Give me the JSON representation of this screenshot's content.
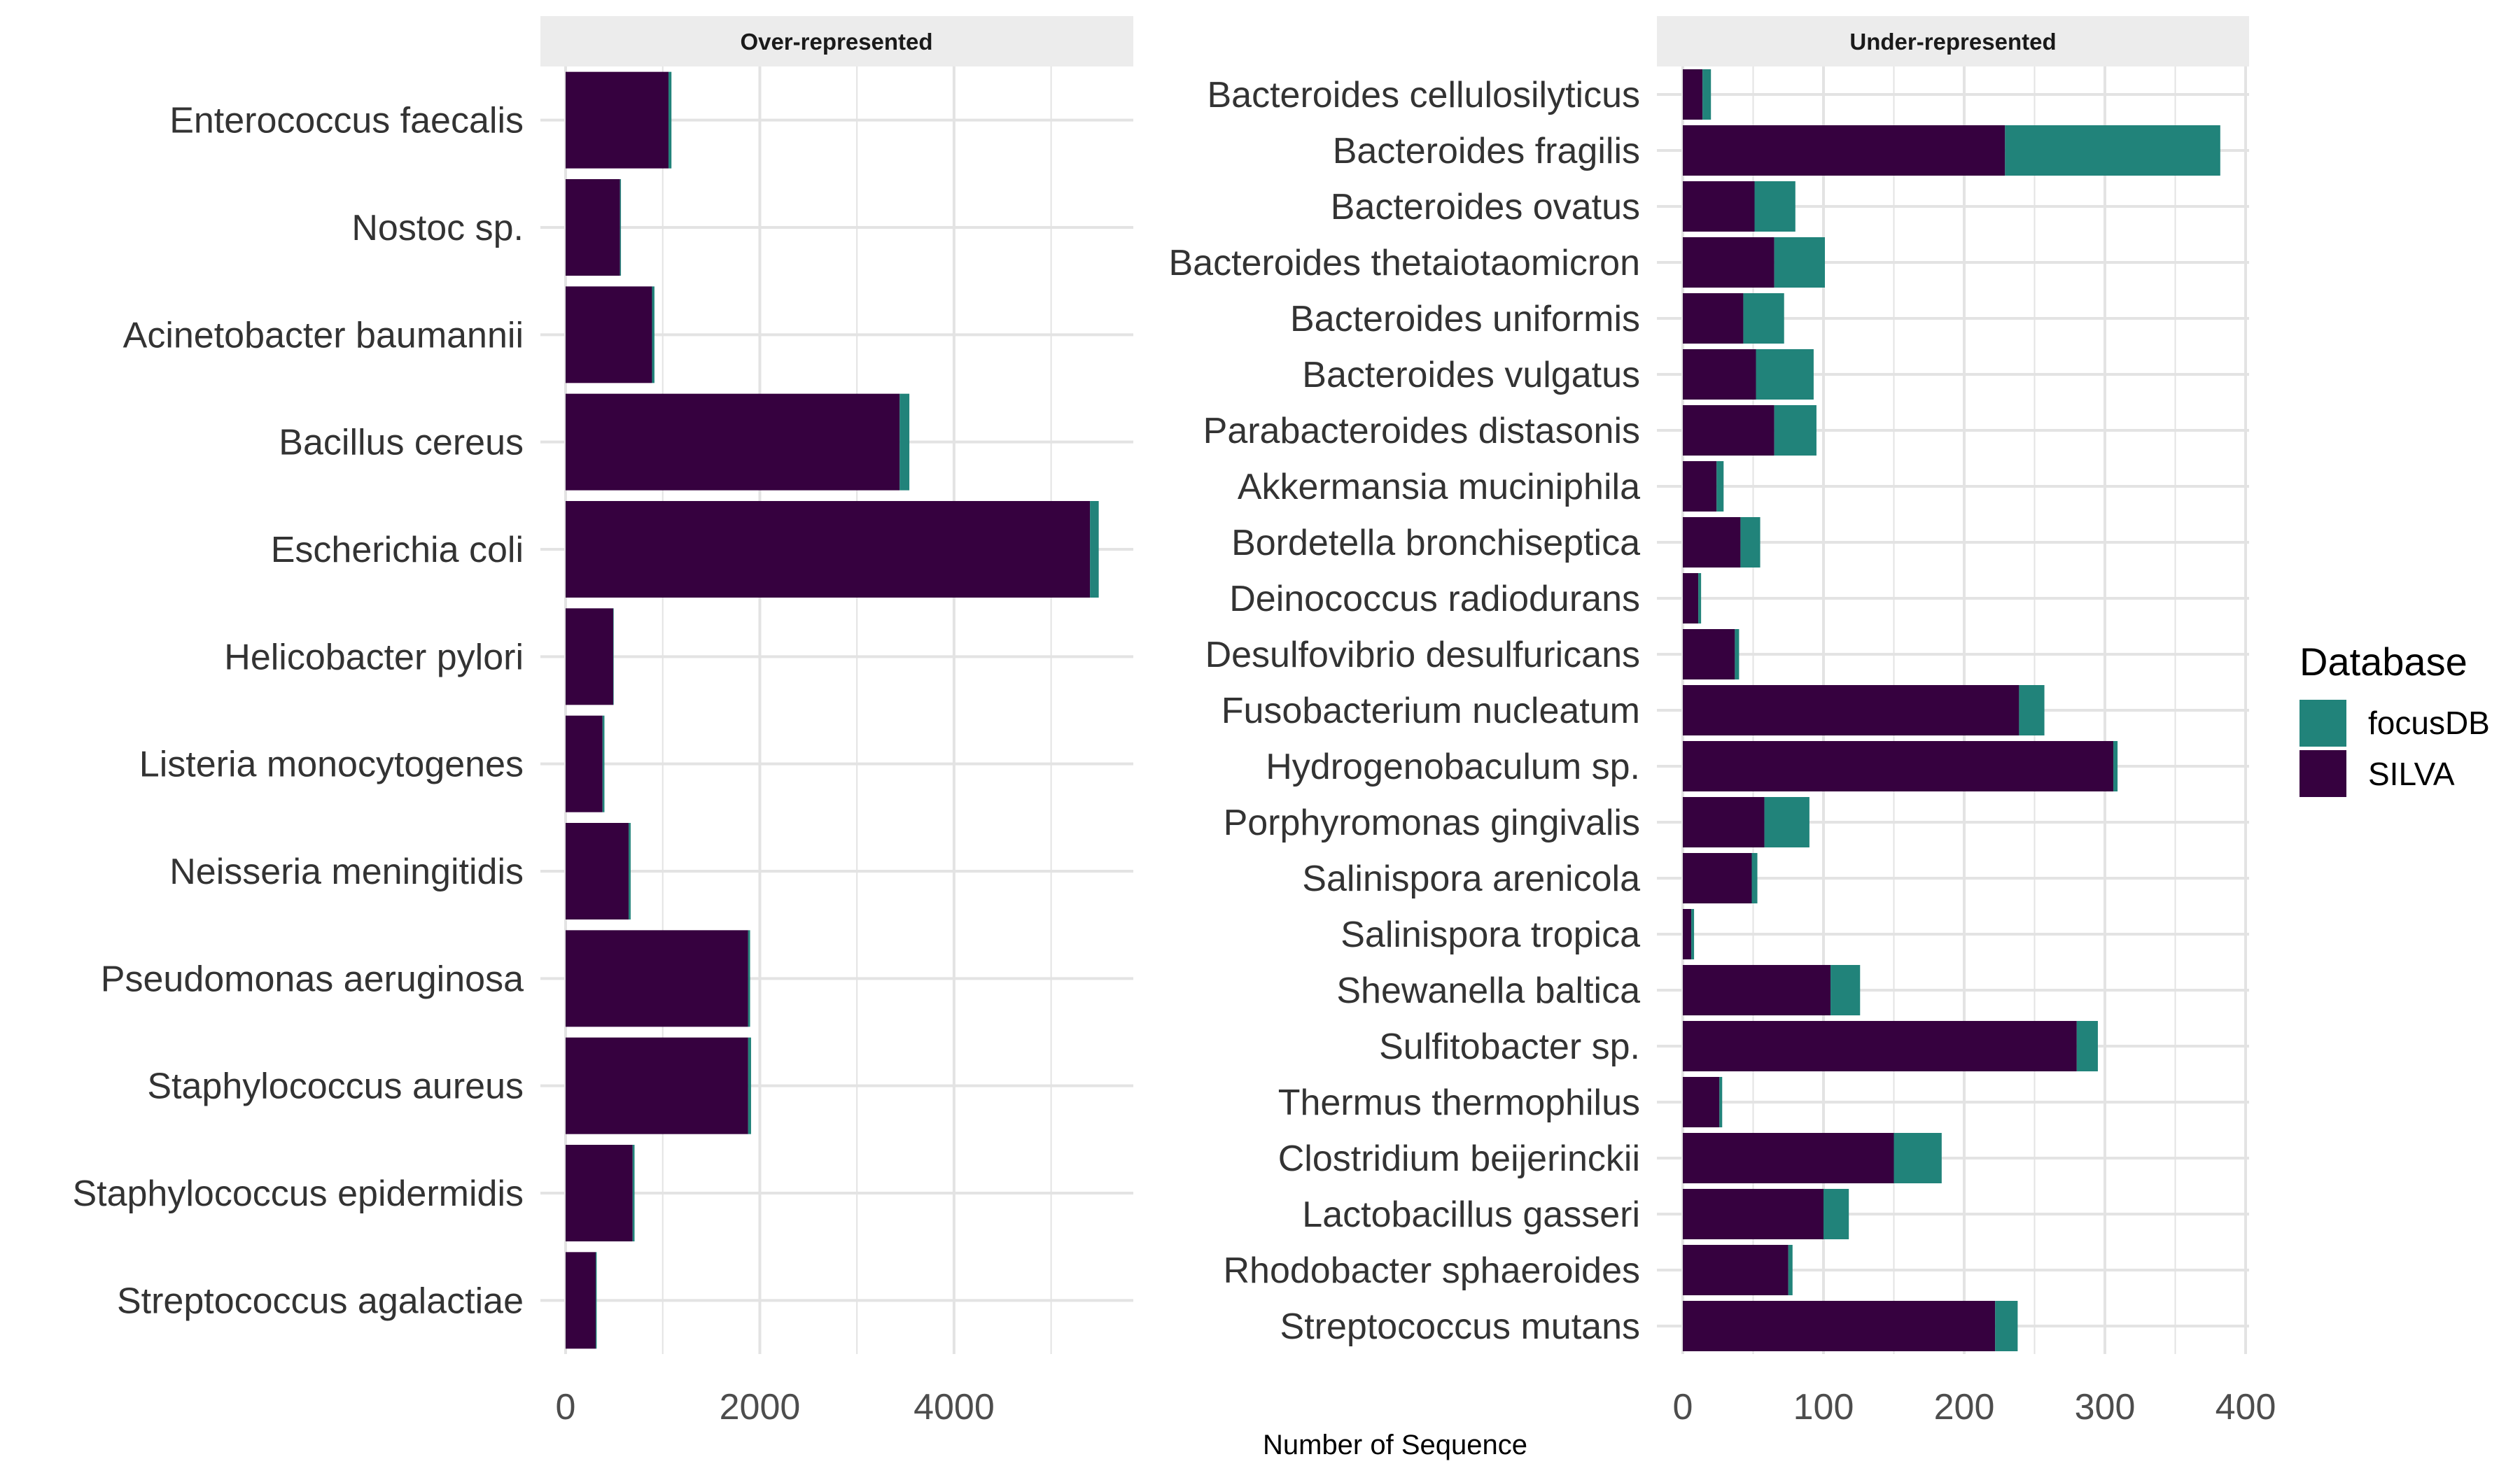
{
  "chart_data": [
    {
      "type": "bar",
      "orientation": "horizontal",
      "stacked": true,
      "title": "Over-represented",
      "categories": [
        "Enterococcus faecalis",
        "Nostoc sp.",
        "Acinetobacter baumannii",
        "Bacillus cereus",
        "Escherichia coli",
        "Helicobacter pylori",
        "Listeria monocytogenes",
        "Neisseria meningitidis",
        "Pseudomonas aeruginosa",
        "Staphylococcus aureus",
        "Staphylococcus epidermidis",
        "Streptococcus agalactiae"
      ],
      "series": [
        {
          "name": "SILVA",
          "values": [
            1060,
            560,
            890,
            3440,
            5400,
            490,
            380,
            650,
            1880,
            1880,
            690,
            310
          ]
        },
        {
          "name": "focusDB",
          "values": [
            30,
            10,
            25,
            100,
            90,
            5,
            20,
            20,
            20,
            30,
            20,
            10
          ]
        }
      ],
      "xlim": [
        0,
        5500
      ],
      "xticks": [
        "0",
        "2000",
        "4000"
      ],
      "grid": true
    },
    {
      "type": "bar",
      "orientation": "horizontal",
      "stacked": true,
      "title": "Under-represented",
      "categories": [
        "Bacteroides cellulosilyticus",
        "Bacteroides fragilis",
        "Bacteroides ovatus",
        "Bacteroides thetaiotaomicron",
        "Bacteroides uniformis",
        "Bacteroides vulgatus",
        "Parabacteroides distasonis",
        "Akkermansia muciniphila",
        "Bordetella bronchiseptica",
        "Deinococcus radiodurans",
        "Desulfovibrio desulfuricans",
        "Fusobacterium nucleatum",
        "Hydrogenobaculum sp.",
        "Porphyromonas gingivalis",
        "Salinispora arenicola",
        "Salinispora tropica",
        "Shewanella baltica",
        "Sulfitobacter sp.",
        "Thermus thermophilus",
        "Clostridium beijerinckii",
        "Lactobacillus gasseri",
        "Rhodobacter sphaeroides",
        "Streptococcus mutans"
      ],
      "series": [
        {
          "name": "SILVA",
          "values": [
            14,
            229,
            51,
            65,
            43,
            52,
            65,
            24,
            41,
            11,
            37,
            239,
            306,
            58,
            49,
            6,
            105,
            280,
            26,
            150,
            100,
            75,
            222
          ]
        },
        {
          "name": "focusDB",
          "values": [
            6,
            153,
            29,
            36,
            29,
            41,
            30,
            5,
            14,
            2,
            3,
            18,
            3,
            32,
            4,
            2,
            21,
            15,
            2,
            34,
            18,
            3,
            16
          ]
        }
      ],
      "xlim": [
        0,
        400
      ],
      "xticks": [
        "0",
        "100",
        "200",
        "300",
        "400"
      ],
      "grid": true
    }
  ],
  "xlabel": "Number of Sequence",
  "legend": {
    "title": "Database",
    "placement": "right",
    "entries": [
      {
        "label": "focusDB",
        "color": "#21837a"
      },
      {
        "label": "SILVA",
        "color": "#36013f"
      }
    ]
  },
  "colors": {
    "SILVA": "#36013f",
    "focusDB": "#21837a",
    "grid": "#e3e3e3",
    "strip": "#ececec"
  }
}
